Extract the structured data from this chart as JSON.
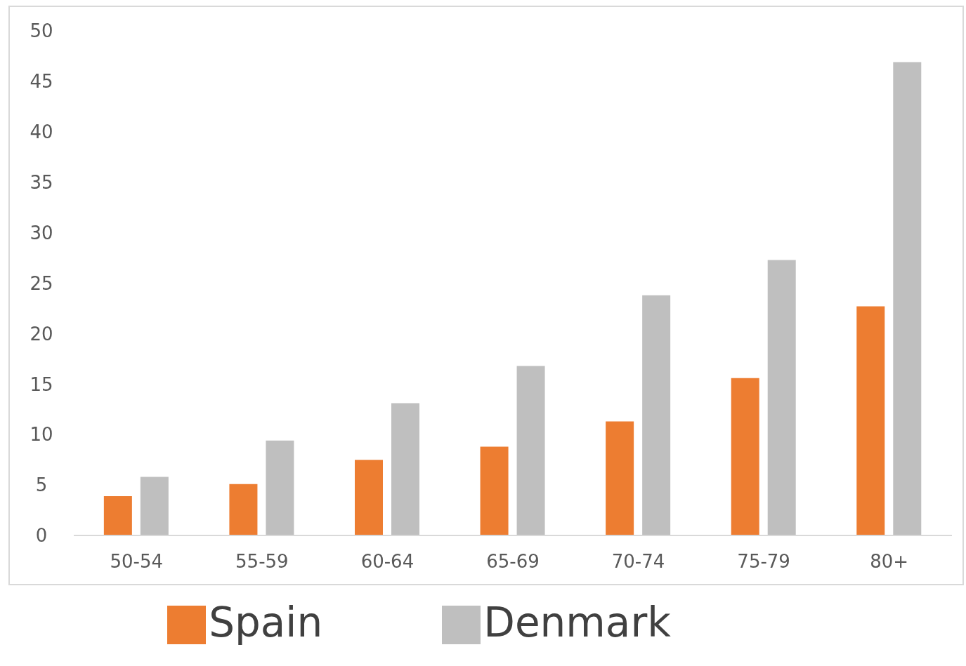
{
  "chart_data": {
    "type": "bar",
    "categories": [
      "50-54",
      "55-59",
      "60-64",
      "65-69",
      "70-74",
      "75-79",
      "80+"
    ],
    "series": [
      {
        "name": "Spain",
        "color": "#ed7d31",
        "values": [
          3.9,
          5.1,
          7.5,
          8.8,
          11.3,
          15.6,
          22.7
        ]
      },
      {
        "name": "Denmark",
        "color": "#bfbfbf",
        "values": [
          5.8,
          9.4,
          13.1,
          16.8,
          23.8,
          27.3,
          46.9
        ]
      }
    ],
    "ylim": [
      0,
      50
    ],
    "yticks": [
      0,
      5,
      10,
      15,
      20,
      25,
      30,
      35,
      40,
      45,
      50
    ],
    "grid": false,
    "legend": "bottom"
  }
}
